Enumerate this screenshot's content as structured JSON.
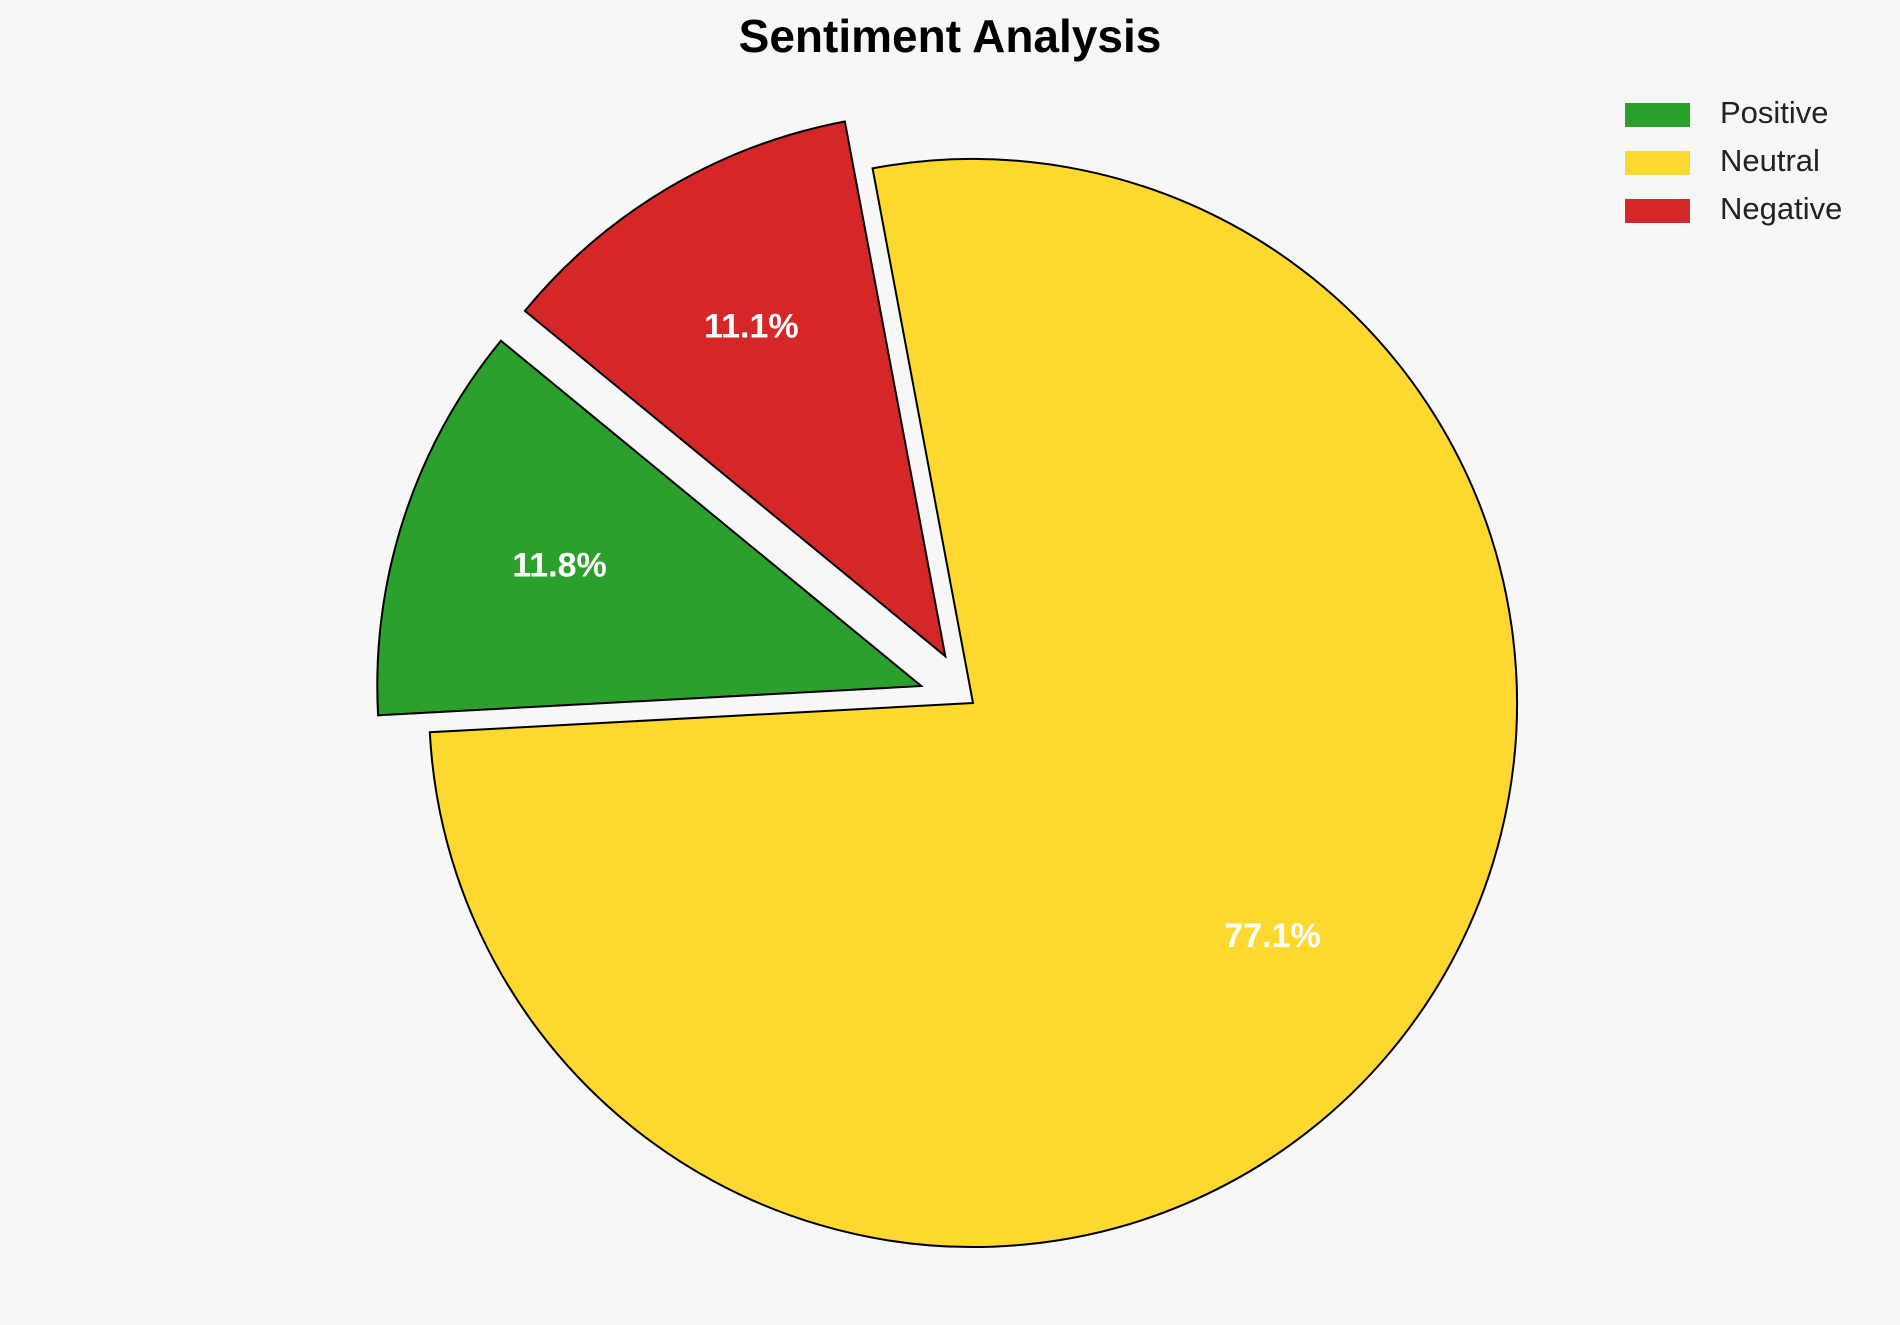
{
  "chart_data": {
    "type": "pie",
    "title": "Sentiment Analysis",
    "categories": [
      "Positive",
      "Neutral",
      "Negative"
    ],
    "values": [
      11.8,
      77.1,
      11.1
    ],
    "value_labels": [
      "11.8%",
      "77.1%",
      "11.1%"
    ],
    "colors": [
      "#2ca02c",
      "#fdd930",
      "#d62728"
    ],
    "legend": "upper right"
  }
}
